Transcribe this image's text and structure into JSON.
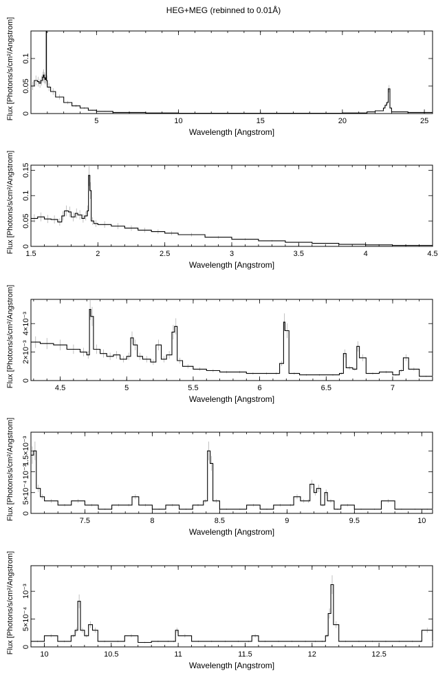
{
  "title": "HEG+MEG (rebinned to 0.01Å)",
  "chart_data": [
    {
      "type": "line",
      "xlabel": "Wavelength [Angstrom]",
      "ylabel": "Flux [Photons/s/cm²/Angstrom]",
      "xlim": [
        1.0,
        25.5
      ],
      "ylim": [
        0,
        0.15
      ],
      "xticks": [
        5,
        10,
        15,
        20,
        25
      ],
      "xtick_labels": [
        "5",
        "10",
        "15",
        "20",
        "25"
      ],
      "yticks": [
        0,
        0.05,
        0.1
      ],
      "ytick_labels": [
        "0",
        "0.05",
        "0.1"
      ],
      "series": [
        {
          "x": [
            1.0,
            1.2,
            1.4,
            1.5,
            1.6,
            1.7,
            1.75,
            1.8,
            1.85,
            1.9,
            1.93,
            1.95,
            2.0,
            2.2,
            2.5,
            3.0,
            3.5,
            4.0,
            4.5,
            5.0,
            6.0,
            8.0,
            10.0,
            15.0,
            20.0,
            21.5,
            22.0,
            22.5,
            22.6,
            22.7,
            22.8,
            22.9,
            23.0,
            24.0,
            25.5
          ],
          "y": [
            0.05,
            0.06,
            0.058,
            0.055,
            0.06,
            0.066,
            0.07,
            0.065,
            0.062,
            0.065,
            0.15,
            0.06,
            0.048,
            0.04,
            0.03,
            0.02,
            0.014,
            0.01,
            0.006,
            0.004,
            0.002,
            0.001,
            0.0005,
            0.0005,
            0.001,
            0.003,
            0.005,
            0.01,
            0.015,
            0.02,
            0.045,
            0.01,
            0.003,
            0.002,
            0.002
          ]
        }
      ]
    },
    {
      "type": "line",
      "xlabel": "Wavelength [Angstrom]",
      "ylabel": "Flux [Photons/s/cm²/Angstrom]",
      "xlim": [
        1.5,
        4.5
      ],
      "ylim": [
        0,
        0.16
      ],
      "xticks": [
        1.5,
        2,
        2.5,
        3,
        3.5,
        4,
        4.5
      ],
      "xtick_labels": [
        "1.5",
        "2",
        "2.5",
        "3",
        "3.5",
        "4",
        "4.5"
      ],
      "yticks": [
        0,
        0.05,
        0.1,
        0.15
      ],
      "ytick_labels": [
        "0",
        "0.05",
        "0.1",
        "0.15"
      ],
      "series": [
        {
          "x": [
            1.5,
            1.55,
            1.6,
            1.65,
            1.7,
            1.73,
            1.75,
            1.78,
            1.8,
            1.83,
            1.85,
            1.88,
            1.9,
            1.92,
            1.93,
            1.94,
            1.95,
            1.97,
            2.0,
            2.1,
            2.2,
            2.3,
            2.4,
            2.5,
            2.6,
            2.8,
            3.0,
            3.2,
            3.4,
            3.6,
            3.8,
            4.0,
            4.2,
            4.5
          ],
          "y": [
            0.055,
            0.058,
            0.054,
            0.053,
            0.048,
            0.06,
            0.07,
            0.068,
            0.058,
            0.065,
            0.062,
            0.055,
            0.06,
            0.07,
            0.14,
            0.11,
            0.05,
            0.045,
            0.043,
            0.04,
            0.036,
            0.032,
            0.029,
            0.026,
            0.023,
            0.018,
            0.014,
            0.011,
            0.008,
            0.006,
            0.004,
            0.003,
            0.002,
            0.001
          ]
        }
      ]
    },
    {
      "type": "line",
      "xlabel": "Wavelength [Angstrom]",
      "ylabel": "Flux [Photons/s/cm²/Angstrom]",
      "xlim": [
        4.28,
        7.3
      ],
      "ylim": [
        0,
        0.0057
      ],
      "xticks": [
        4.5,
        5,
        5.5,
        6,
        6.5,
        7
      ],
      "xtick_labels": [
        "4.5",
        "5",
        "5.5",
        "6",
        "6.5",
        "7"
      ],
      "yticks": [
        0,
        0.002,
        0.004
      ],
      "ytick_labels": [
        "0",
        "2×10⁻³",
        "4×10⁻³"
      ],
      "series": [
        {
          "x": [
            4.28,
            4.35,
            4.45,
            4.55,
            4.65,
            4.7,
            4.72,
            4.73,
            4.75,
            4.8,
            4.85,
            4.9,
            4.95,
            5.0,
            5.03,
            5.05,
            5.08,
            5.12,
            5.18,
            5.22,
            5.26,
            5.3,
            5.34,
            5.36,
            5.38,
            5.42,
            5.5,
            5.6,
            5.7,
            5.8,
            5.9,
            6.0,
            6.1,
            6.15,
            6.18,
            6.19,
            6.22,
            6.3,
            6.4,
            6.5,
            6.6,
            6.63,
            6.65,
            6.7,
            6.73,
            6.75,
            6.8,
            6.9,
            7.0,
            7.05,
            7.08,
            7.12,
            7.2,
            7.3
          ],
          "y": [
            0.0027,
            0.0026,
            0.0025,
            0.0022,
            0.002,
            0.0018,
            0.005,
            0.0045,
            0.0022,
            0.0019,
            0.0017,
            0.0018,
            0.0015,
            0.0017,
            0.003,
            0.0025,
            0.0017,
            0.0015,
            0.0013,
            0.0025,
            0.0015,
            0.0018,
            0.0034,
            0.0038,
            0.0014,
            0.001,
            0.0008,
            0.0007,
            0.0006,
            0.0006,
            0.0005,
            0.0005,
            0.0005,
            0.0012,
            0.0041,
            0.0035,
            0.0005,
            0.0004,
            0.0004,
            0.0004,
            0.0005,
            0.0019,
            0.0009,
            0.0008,
            0.0024,
            0.0016,
            0.0005,
            0.0006,
            0.0004,
            0.0007,
            0.0016,
            0.0008,
            0.0003,
            0.0003
          ]
        }
      ]
    },
    {
      "type": "line",
      "xlabel": "Wavelength [Angstrom]",
      "ylabel": "Flux [Photons/s/cm²/Angstrom]",
      "xlim": [
        7.1,
        10.08
      ],
      "ylim": [
        0,
        0.00195
      ],
      "xticks": [
        7.5,
        8,
        8.5,
        9,
        9.5,
        10
      ],
      "xtick_labels": [
        "7.5",
        "8",
        "8.5",
        "9",
        "9.5",
        "10"
      ],
      "yticks": [
        0,
        0.0005,
        0.001,
        0.0015
      ],
      "ytick_labels": [
        "0",
        "5×10⁻⁴",
        "10⁻³",
        "1.5×10⁻³"
      ],
      "series": [
        {
          "x": [
            7.1,
            7.12,
            7.14,
            7.17,
            7.2,
            7.3,
            7.4,
            7.5,
            7.6,
            7.7,
            7.8,
            7.85,
            7.9,
            8.0,
            8.1,
            8.2,
            8.3,
            8.38,
            8.41,
            8.43,
            8.45,
            8.5,
            8.6,
            8.7,
            8.8,
            8.9,
            9.0,
            9.05,
            9.1,
            9.15,
            9.17,
            9.2,
            9.22,
            9.25,
            9.28,
            9.3,
            9.35,
            9.4,
            9.5,
            9.6,
            9.7,
            9.8,
            9.9,
            10.0,
            10.08
          ],
          "y": [
            0.0014,
            0.0015,
            0.0006,
            0.0004,
            0.0003,
            0.0002,
            0.0003,
            0.0002,
            0.0001,
            0.0002,
            0.0002,
            0.0004,
            0.0002,
            0.0001,
            0.0002,
            0.0001,
            0.0002,
            0.0003,
            0.0015,
            0.0012,
            0.0003,
            0.0001,
            0.0001,
            0.0002,
            0.0001,
            0.0002,
            0.0002,
            0.0004,
            0.0003,
            0.0003,
            0.0007,
            0.0005,
            0.0006,
            0.0002,
            0.0005,
            0.0003,
            0.0001,
            0.0002,
            0.0001,
            0.0001,
            0.0003,
            0.0001,
            0.0001,
            0.0001,
            0.0001
          ]
        }
      ]
    },
    {
      "type": "line",
      "xlabel": "Wavelength [Angstrom]",
      "ylabel": "Flux [Photons/s/cm²/Angstrom]",
      "xlim": [
        9.9,
        12.9
      ],
      "ylim": [
        0,
        0.00146
      ],
      "xticks": [
        10,
        10.5,
        11,
        11.5,
        12,
        12.5
      ],
      "xtick_labels": [
        "10",
        "10.5",
        "11",
        "11.5",
        "12",
        "12.5"
      ],
      "yticks": [
        0,
        0.0005,
        0.001
      ],
      "ytick_labels": [
        "0",
        "5×10⁻⁴",
        "10⁻³"
      ],
      "series": [
        {
          "x": [
            9.9,
            10.0,
            10.1,
            10.2,
            10.23,
            10.25,
            10.27,
            10.3,
            10.33,
            10.36,
            10.4,
            10.5,
            10.6,
            10.7,
            10.8,
            10.9,
            10.95,
            10.98,
            11.0,
            11.1,
            11.2,
            11.3,
            11.4,
            11.5,
            11.55,
            11.6,
            11.7,
            11.8,
            11.9,
            12.0,
            12.05,
            12.1,
            12.12,
            12.14,
            12.16,
            12.2,
            12.3,
            12.4,
            12.5,
            12.6,
            12.7,
            12.8,
            12.82,
            12.9
          ],
          "y": [
            0.0001,
            0.0002,
            0.0001,
            0.0002,
            0.0003,
            0.00082,
            0.0003,
            0.0002,
            0.0004,
            0.0003,
            0.0001,
            0.0001,
            0.0002,
            8e-05,
            0.0001,
            0.0001,
            0.0001,
            0.0003,
            0.0002,
            0.0001,
            0.0001,
            0.0001,
            0.0001,
            0.0001,
            0.0002,
            0.0001,
            0.0001,
            0.0001,
            0.0001,
            0.0001,
            0.0001,
            0.0002,
            0.0006,
            0.00112,
            0.0004,
            0.0001,
            0.0001,
            0.0001,
            0.0001,
            0.0001,
            0.0001,
            0.0001,
            0.0003,
            0.0001
          ]
        }
      ]
    }
  ]
}
